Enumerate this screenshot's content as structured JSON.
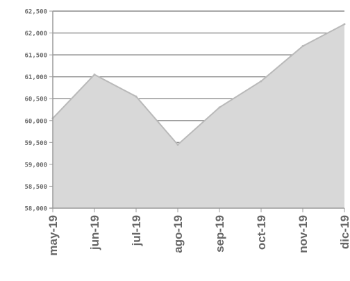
{
  "chart_data": {
    "type": "area",
    "title": "",
    "xlabel": "",
    "ylabel": "",
    "categories": [
      "may-19",
      "jun-19",
      "jul-19",
      "ago-19",
      "sep-19",
      "oct-19",
      "nov-19",
      "dic-19"
    ],
    "y_tick_labels": [
      "58,000",
      "58,500",
      "59,000",
      "59,500",
      "60,000",
      "60,500",
      "61,000",
      "61,500",
      "62,000",
      "62,500"
    ],
    "ylim": [
      58000,
      62500
    ],
    "grid": true,
    "legend": "none",
    "series": [
      {
        "values": [
          60050,
          61050,
          60550,
          59450,
          60300,
          60900,
          61700,
          62200
        ]
      }
    ],
    "colors": {
      "fill": "#d8d8d8",
      "line": "#b9b9b9",
      "grid": "#8c8c8c",
      "axis": "#9a9a9a"
    }
  }
}
